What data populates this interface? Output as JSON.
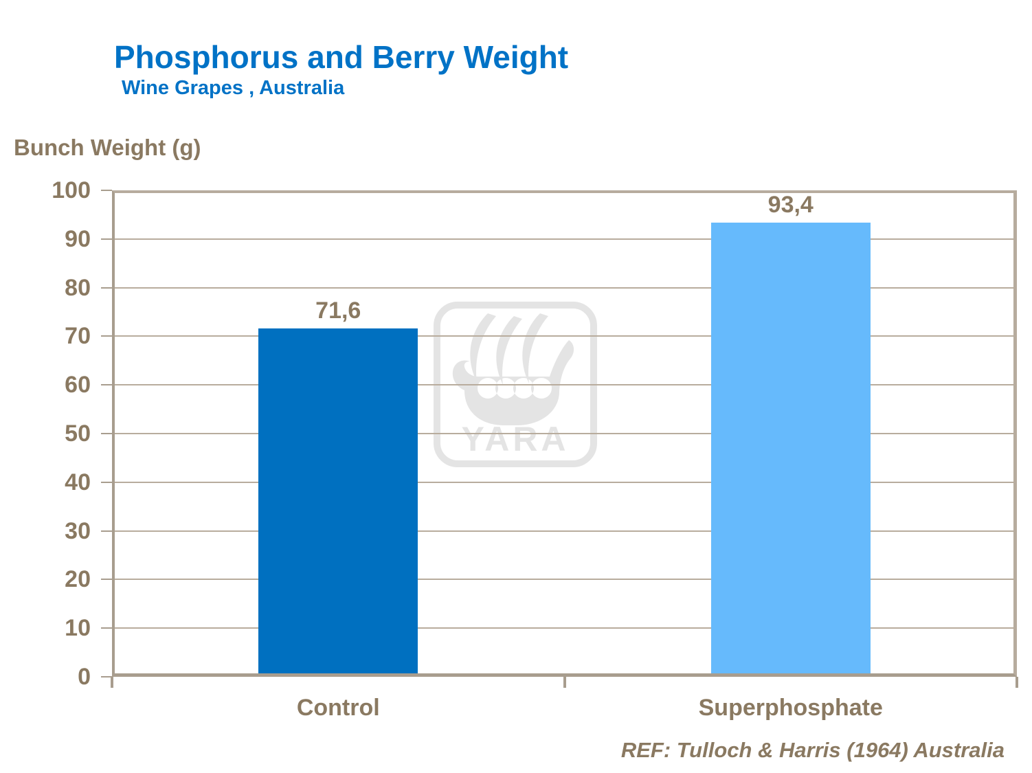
{
  "header": {
    "title": "Phosphorus and Berry Weight",
    "subtitle": "Wine Grapes , Australia"
  },
  "chart_data": {
    "type": "bar",
    "title": "Phosphorus and Berry Weight",
    "subtitle": "Wine Grapes , Australia",
    "ylabel": "Bunch Weight (g)",
    "xlabel": "",
    "categories": [
      "Control",
      "Superphosphate"
    ],
    "values": [
      71.6,
      93.4
    ],
    "value_labels": [
      "71,6",
      "93,4"
    ],
    "bar_colors": [
      "#0070C0",
      "#66BAFC"
    ],
    "ylim": [
      0,
      100
    ],
    "ytick_step": 10,
    "ytick_labels": [
      "0",
      "10",
      "20",
      "30",
      "40",
      "50",
      "60",
      "70",
      "80",
      "90",
      "100"
    ],
    "grid": true,
    "legend": false,
    "decimal_separator": ","
  },
  "footer": {
    "reference": "REF: Tulloch & Harris (1964) Australia"
  },
  "watermark": {
    "label": "YARA"
  },
  "colors": {
    "title_blue": "#0072C6",
    "text_brown": "#8A7961",
    "axis_line": "#A89D8E",
    "frame_line": "#B7AC9E",
    "gridline": "#B8AC9D",
    "bar_control": "#0070C0",
    "bar_superphosphate": "#66BAFC",
    "watermark_gray": "#E4E4E4",
    "background": "#FFFFFF"
  }
}
